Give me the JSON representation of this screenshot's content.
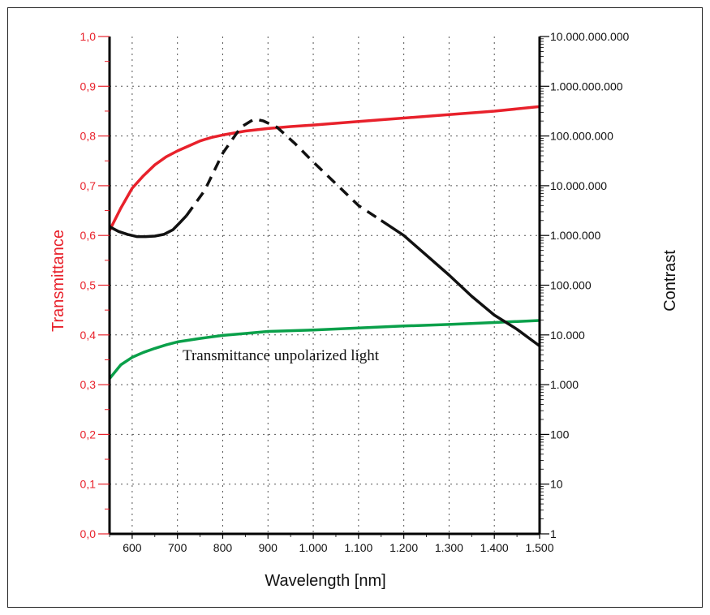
{
  "chart_data": {
    "type": "line",
    "xlabel": "Wavelength [nm]",
    "ylabel_left": "Transmittance",
    "ylabel_right": "Contrast",
    "annotation": "Transmittance unpolarized light",
    "xlim": [
      550,
      1500
    ],
    "ylim_left": [
      0,
      1
    ],
    "ylim_right": [
      1,
      10000000000
    ],
    "right_axis_scale": "log",
    "grid": true,
    "x_ticks": [
      600,
      700,
      800,
      900,
      1000,
      1100,
      1200,
      1300,
      1400,
      1500
    ],
    "x_tick_labels": [
      "600",
      "700",
      "800",
      "900",
      "1.000",
      "1.100",
      "1.200",
      "1.300",
      "1.400",
      "1.500"
    ],
    "y_left_ticks": [
      0,
      0.1,
      0.2,
      0.3,
      0.4,
      0.5,
      0.6,
      0.7,
      0.8,
      0.9,
      1.0
    ],
    "y_left_tick_labels": [
      "0,0",
      "0,1",
      "0,2",
      "0,3",
      "0,4",
      "0,5",
      "0,6",
      "0,7",
      "0,8",
      "0,9",
      "1,0"
    ],
    "y_right_ticks": [
      1,
      10,
      100,
      1000,
      10000,
      100000,
      1000000,
      10000000,
      100000000,
      1000000000,
      10000000000
    ],
    "y_right_tick_labels": [
      "1",
      "10",
      "100",
      "1.000",
      "10.000",
      "100.000",
      "1.000.000",
      "10.000.000",
      "100.000.000",
      "1.000.000.000",
      "10.000.000.000"
    ],
    "colors": {
      "left_axis": "#e8212b",
      "right_axis": "#111111",
      "grid": "#555555"
    },
    "series": [
      {
        "color": "#e8212b",
        "axis": "left",
        "style": "solid",
        "x": [
          550,
          575,
          600,
          625,
          650,
          675,
          700,
          725,
          750,
          775,
          800,
          850,
          900,
          950,
          1000,
          1100,
          1200,
          1300,
          1400,
          1500
        ],
        "y": [
          0.61,
          0.655,
          0.695,
          0.72,
          0.742,
          0.758,
          0.77,
          0.78,
          0.79,
          0.797,
          0.802,
          0.81,
          0.815,
          0.819,
          0.822,
          0.829,
          0.836,
          0.843,
          0.85,
          0.859
        ]
      },
      {
        "color": "#0aa04a",
        "axis": "left",
        "style": "solid",
        "x": [
          550,
          575,
          600,
          625,
          650,
          675,
          700,
          750,
          800,
          850,
          900,
          1000,
          1100,
          1200,
          1300,
          1400,
          1500
        ],
        "y": [
          0.312,
          0.34,
          0.355,
          0.365,
          0.373,
          0.38,
          0.386,
          0.393,
          0.399,
          0.403,
          0.407,
          0.41,
          0.414,
          0.418,
          0.421,
          0.425,
          0.429
        ]
      },
      {
        "color": "#111111",
        "axis": "right",
        "style": "solid",
        "x": [
          550,
          570,
          590,
          610,
          630,
          650,
          670,
          690,
          705,
          720
        ],
        "y": [
          1500000,
          1200000,
          1050000,
          950000,
          950000,
          970000,
          1050000,
          1300000,
          1800000,
          2500000
        ]
      },
      {
        "color": "#111111",
        "axis": "right",
        "style": "dashed",
        "x": [
          720,
          760,
          800,
          840,
          870,
          890,
          920,
          960,
          1000,
          1050,
          1100,
          1150
        ],
        "y": [
          2500000,
          8000000,
          45000000,
          150000000,
          220000000,
          200000000,
          150000000,
          70000000,
          30000000,
          11000000,
          4000000,
          2000000
        ]
      },
      {
        "color": "#111111",
        "axis": "right",
        "style": "solid",
        "x": [
          1150,
          1200,
          1250,
          1300,
          1350,
          1400,
          1450,
          1500
        ],
        "y": [
          2000000,
          1000000,
          400000,
          160000,
          60000,
          25000,
          13000,
          6000
        ]
      }
    ]
  }
}
